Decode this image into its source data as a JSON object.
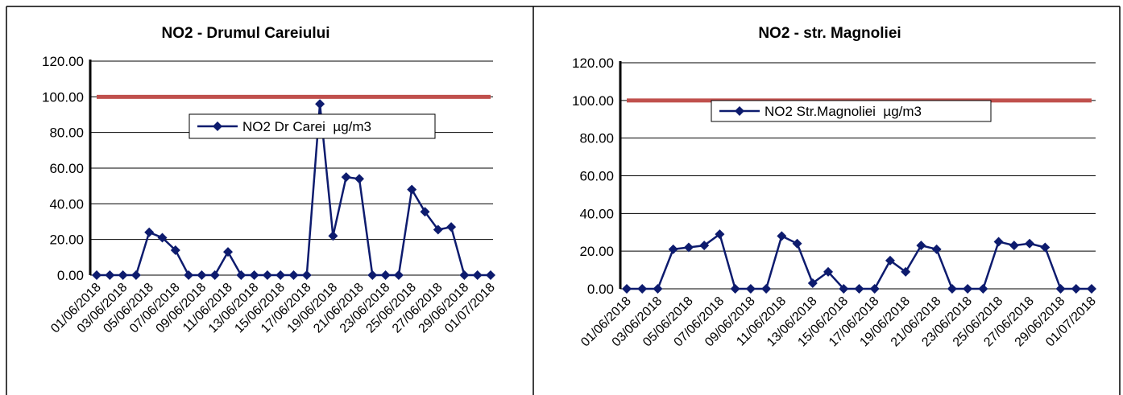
{
  "chart_data": [
    {
      "type": "line",
      "title": "NO2 - Drumul Careiului",
      "categories": [
        "01/06/2018",
        null,
        "03/06/2018",
        null,
        "05/06/2018",
        null,
        "07/06/2018",
        null,
        "09/06/2018",
        null,
        "11/06/2018",
        null,
        "13/06/2018",
        null,
        "15/06/2018",
        null,
        "17/06/2018",
        null,
        "19/06/2018",
        null,
        "21/06/2018",
        null,
        "23/06/2018",
        null,
        "25/06/2018",
        null,
        "27/06/2018",
        null,
        "29/06/2018",
        null,
        "01/07/2018"
      ],
      "series": [
        {
          "name": "NO2 Dr Carei  µg/m3",
          "color": "#0d1b6e",
          "values": [
            0,
            0,
            0,
            0,
            24,
            21,
            14,
            0,
            0,
            0,
            13,
            0,
            0,
            0,
            0,
            0,
            0,
            96,
            22,
            55,
            54,
            0,
            0,
            0,
            48,
            35.5,
            25.5,
            27,
            0,
            0,
            0
          ]
        }
      ],
      "reference_line": 100,
      "reference_color": "#c0504d",
      "ylim": [
        0,
        120
      ],
      "yticks": [
        {
          "value": 0,
          "label": "0.00"
        },
        {
          "value": 20,
          "label": "20.00"
        },
        {
          "value": 40,
          "label": "40.00"
        },
        {
          "value": 60,
          "label": "60.00"
        },
        {
          "value": 80,
          "label": "80.00"
        },
        {
          "value": 100,
          "label": "100.00"
        },
        {
          "value": 120,
          "label": "120.00"
        }
      ],
      "grid": true
    },
    {
      "type": "line",
      "title": "NO2 - str. Magnoliei",
      "categories": [
        "01/06/2018",
        null,
        "03/06/2018",
        null,
        "05/06/2018",
        null,
        "07/06/2018",
        null,
        "09/06/2018",
        null,
        "11/06/2018",
        null,
        "13/06/2018",
        null,
        "15/06/2018",
        null,
        "17/06/2018",
        null,
        "19/06/2018",
        null,
        "21/06/2018",
        null,
        "23/06/2018",
        null,
        "25/06/2018",
        null,
        "27/06/2018",
        null,
        "29/06/2018",
        null,
        "01/07/2018"
      ],
      "series": [
        {
          "name": "NO2 Str.Magnoliei  µg/m3",
          "color": "#0d1b6e",
          "values": [
            0,
            0,
            0,
            21,
            22,
            23,
            29,
            0,
            0,
            0,
            28,
            24,
            3,
            9,
            0,
            0,
            0,
            15,
            9,
            23,
            21,
            0,
            0,
            0,
            25,
            23,
            24,
            22,
            0,
            0,
            0
          ]
        }
      ],
      "reference_line": 100,
      "reference_color": "#c0504d",
      "ylim": [
        0,
        120
      ],
      "yticks": [
        {
          "value": 0,
          "label": "0.00"
        },
        {
          "value": 20,
          "label": "20.00"
        },
        {
          "value": 40,
          "label": "40.00"
        },
        {
          "value": 60,
          "label": "60.00"
        },
        {
          "value": 80,
          "label": "80.00"
        },
        {
          "value": 100,
          "label": "100.00"
        },
        {
          "value": 120,
          "label": "120.00"
        }
      ],
      "grid": true
    }
  ]
}
